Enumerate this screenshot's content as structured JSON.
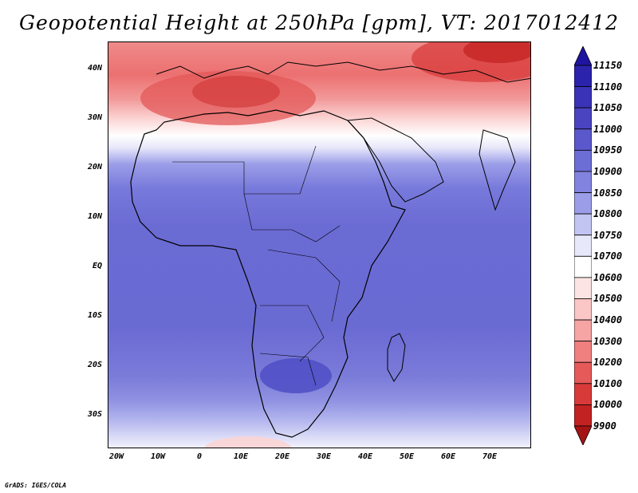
{
  "title": "Geopotential Height at 250hPa [gpm], VT: 2017012412",
  "footer": "GrADS: IGES/COLA",
  "axes": {
    "lat_labels": [
      "40N",
      "30N",
      "20N",
      "10N",
      "EQ",
      "10S",
      "20S",
      "30S"
    ],
    "lon_labels": [
      "20W",
      "10W",
      "0",
      "10E",
      "20E",
      "30E",
      "40E",
      "50E",
      "60E",
      "70E"
    ]
  },
  "colorbar": {
    "labels": [
      "11150",
      "11100",
      "11050",
      "11000",
      "10950",
      "10900",
      "10850",
      "10800",
      "10750",
      "10700",
      "10600",
      "10500",
      "10400",
      "10300",
      "10200",
      "10100",
      "10000",
      "9900"
    ],
    "colors": [
      "#1e14a0",
      "#2b23ac",
      "#3a33b7",
      "#4a44c1",
      "#5b58cc",
      "#6d6dd6",
      "#8183de",
      "#9b9de8",
      "#c2c4f1",
      "#e8e8fb",
      "#ffffff",
      "#fde4e4",
      "#fbc6c6",
      "#f6a4a4",
      "#f08080",
      "#e65a5a",
      "#d83a3a",
      "#c32222",
      "#a51414"
    ]
  },
  "chart_data": {
    "type": "heatmap",
    "title": "Geopotential Height at 250hPa [gpm], VT: 2017012412",
    "variable": "Geopotential Height at 250hPa",
    "units": "gpm",
    "valid_time": "2017012412",
    "lon_range": [
      -22,
      80
    ],
    "lat_range": [
      -37,
      45
    ],
    "levels": [
      9900,
      10000,
      10100,
      10200,
      10300,
      10400,
      10500,
      10600,
      10700,
      10750,
      10800,
      10850,
      10900,
      10950,
      11000,
      11050,
      11100,
      11150
    ],
    "field_bands_by_lat": [
      {
        "lat": 44,
        "value": 10250
      },
      {
        "lat": 36,
        "value": 10300
      },
      {
        "lat": 32,
        "value": 10450
      },
      {
        "lat": 28,
        "value": 10650
      },
      {
        "lat": 25,
        "value": 10750
      },
      {
        "lat": 22,
        "value": 10850
      },
      {
        "lat": 15,
        "value": 10900
      },
      {
        "lat": 5,
        "value": 10950
      },
      {
        "lat": -10,
        "value": 10950
      },
      {
        "lat": -20,
        "value": 10950
      },
      {
        "lat": -26,
        "value": 10900
      },
      {
        "lat": -31,
        "value": 10850
      },
      {
        "lat": -34,
        "value": 10800
      },
      {
        "lat": -37,
        "value": 10650
      }
    ],
    "features": [
      {
        "label": "minimum over Mediterranean/N. Africa",
        "lon": 5,
        "lat": 36,
        "value": 10200
      },
      {
        "label": "minimum over Middle East/Iran",
        "lon": 65,
        "lat": 43,
        "value": 10100
      },
      {
        "label": "maximum over southern Africa",
        "lon": 25,
        "lat": -20,
        "value": 11000
      }
    ]
  }
}
